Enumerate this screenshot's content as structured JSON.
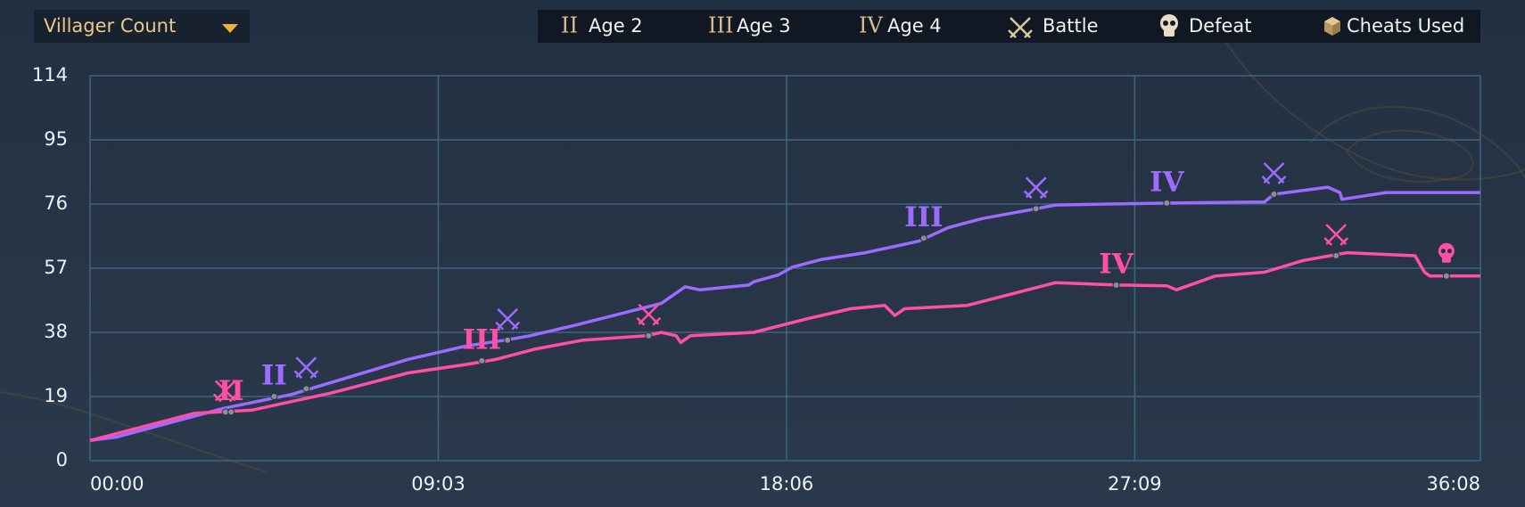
{
  "dropdown": {
    "label": "Villager Count"
  },
  "legend": [
    {
      "symbol": "II",
      "label": "Age 2"
    },
    {
      "symbol": "III",
      "label": "Age 3"
    },
    {
      "symbol": "IV",
      "label": "Age 4"
    },
    {
      "label": "Battle"
    },
    {
      "label": "Defeat"
    },
    {
      "label": "Cheats Used"
    }
  ],
  "chart_data": {
    "type": "line",
    "xlim": [
      0,
      2168
    ],
    "ylim": [
      0,
      114
    ],
    "yticks": [
      0,
      19,
      38,
      57,
      76,
      95,
      114
    ],
    "xticks": [
      {
        "value": 0,
        "label": "00:00"
      },
      {
        "value": 543,
        "label": "09:03"
      },
      {
        "value": 1086,
        "label": "18:06"
      },
      {
        "value": 1629,
        "label": "27:09"
      },
      {
        "value": 2168,
        "label": "36:08"
      }
    ],
    "grid": true,
    "series": [
      {
        "color": "#9b6cff",
        "x": [
          0,
          41,
          208,
          314,
          496,
          587,
          648,
          686,
          754,
          891,
          906,
          928,
          951,
          1027,
          1035,
          1073,
          1095,
          1141,
          1209,
          1292,
          1338,
          1391,
          1475,
          1505,
          1679,
          1831,
          1846,
          1930,
          1949,
          1952,
          2021,
          2168
        ],
        "values": [
          6,
          7,
          15.5,
          19.6,
          30,
          34,
          35.7,
          37,
          40,
          46.6,
          48.6,
          51.5,
          50.6,
          52,
          53,
          55,
          57.3,
          59.6,
          61.6,
          65,
          69,
          71.7,
          74.6,
          75.7,
          76.3,
          76.6,
          78.9,
          81,
          79.4,
          77.4,
          79.4,
          79.4
        ],
        "events": [
          {
            "kind": "age",
            "label": "II",
            "x": 287,
            "y": 19
          },
          {
            "kind": "battle",
            "x": 337,
            "y": 21.3
          },
          {
            "kind": "battle",
            "x": 651,
            "y": 35.7
          },
          {
            "kind": "age",
            "label": "III",
            "x": 1300,
            "y": 65.9
          },
          {
            "kind": "battle",
            "x": 1475,
            "y": 74.6
          },
          {
            "kind": "age",
            "label": "IV",
            "x": 1679,
            "y": 76.3
          },
          {
            "kind": "battle",
            "x": 1846,
            "y": 78.9
          }
        ]
      },
      {
        "color": "#ff4fa8",
        "x": [
          0,
          162,
          253,
          375,
          496,
          587,
          633,
          693,
          769,
          868,
          891,
          914,
          921,
          936,
          1035,
          1118,
          1186,
          1239,
          1255,
          1270,
          1368,
          1505,
          1603,
          1679,
          1694,
          1755,
          1831,
          1892,
          1960,
          2066,
          2081,
          2089,
          2168
        ],
        "values": [
          6,
          14,
          15,
          20,
          26,
          28.5,
          30,
          33,
          35.7,
          37,
          38,
          37,
          35,
          37,
          38,
          42,
          45,
          46,
          43,
          45,
          46,
          52.7,
          52,
          51.8,
          50.6,
          54.7,
          55.8,
          59.3,
          61.6,
          60.7,
          55.8,
          54.7,
          54.7
        ],
        "events": [
          {
            "kind": "battle",
            "x": 211,
            "y": 14.4
          },
          {
            "kind": "age",
            "label": "II",
            "x": 220,
            "y": 14.4
          },
          {
            "kind": "age",
            "label": "III",
            "x": 611,
            "y": 29.6
          },
          {
            "kind": "battle",
            "x": 871,
            "y": 37
          },
          {
            "kind": "age",
            "label": "IV",
            "x": 1600,
            "y": 52
          },
          {
            "kind": "battle",
            "x": 1943,
            "y": 60.7
          },
          {
            "kind": "defeat",
            "x": 2115,
            "y": 54.7
          }
        ]
      }
    ]
  }
}
